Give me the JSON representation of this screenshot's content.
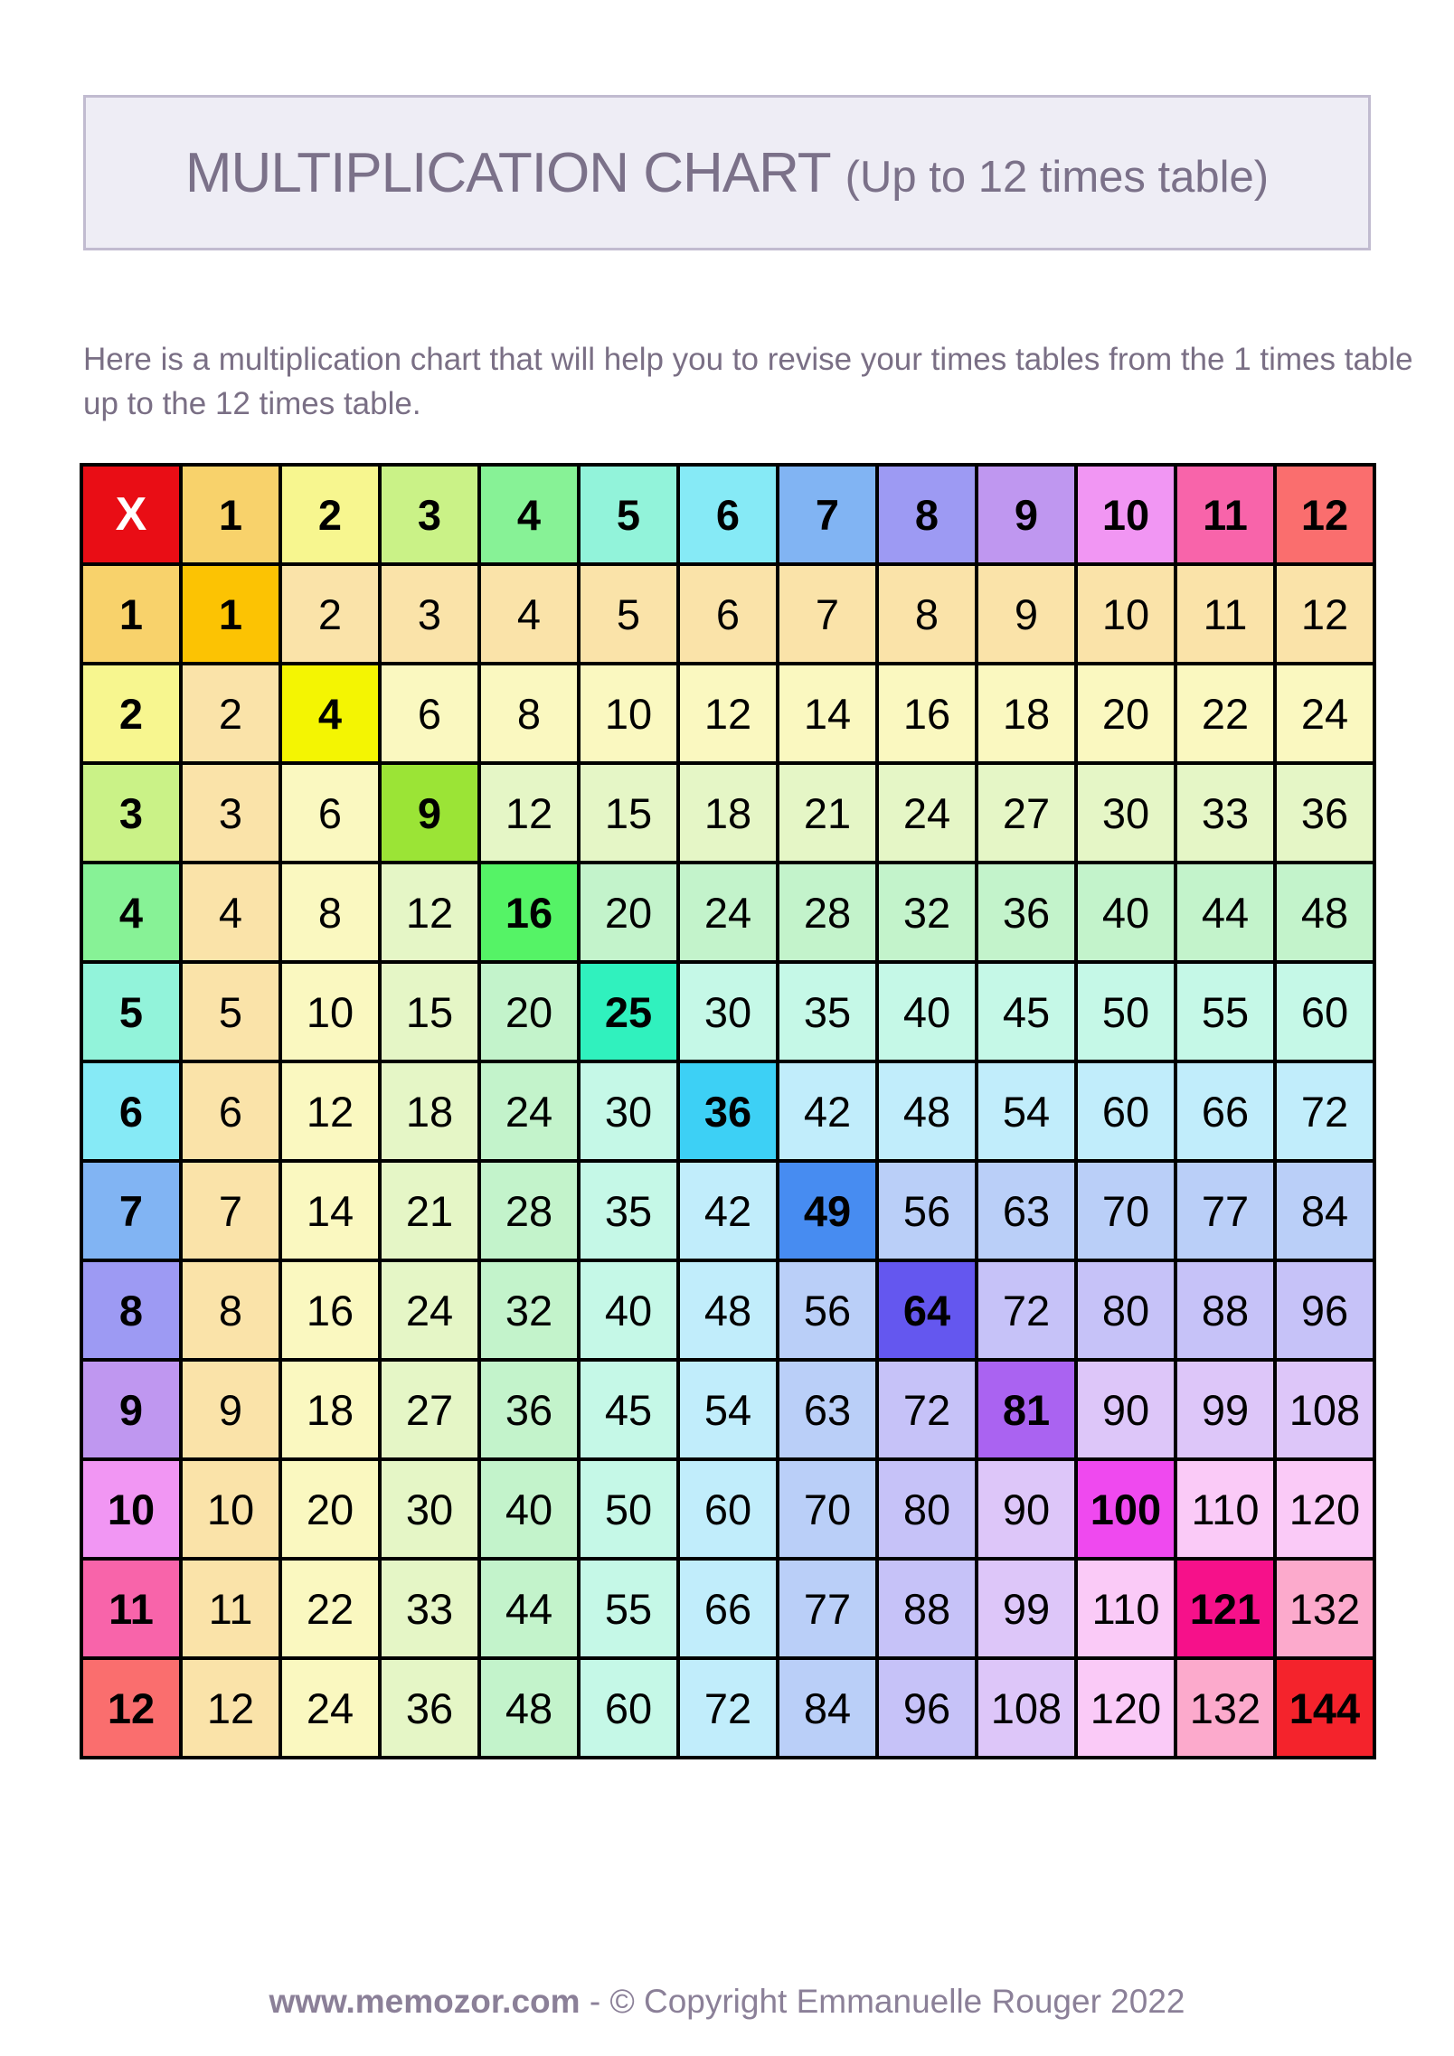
{
  "title": {
    "main": "MULTIPLICATION CHART",
    "suffix": "(Up to 12 times table)"
  },
  "description": "Here is a multiplication chart that will help you to revise your times tables from the 1 times table up to the 12 times table.",
  "footer": {
    "site": "www.memozor.com",
    "separator": "-",
    "copyright": "© Copyright Emmanuelle Rouger 2022"
  },
  "table": {
    "corner_label": "X",
    "headers": [
      1,
      2,
      3,
      4,
      5,
      6,
      7,
      8,
      9,
      10,
      11,
      12
    ],
    "rows": [
      [
        1,
        2,
        3,
        4,
        5,
        6,
        7,
        8,
        9,
        10,
        11,
        12
      ],
      [
        2,
        4,
        6,
        8,
        10,
        12,
        14,
        16,
        18,
        20,
        22,
        24
      ],
      [
        3,
        6,
        9,
        12,
        15,
        18,
        21,
        24,
        27,
        30,
        33,
        36
      ],
      [
        4,
        8,
        12,
        16,
        20,
        24,
        28,
        32,
        36,
        40,
        44,
        48
      ],
      [
        5,
        10,
        15,
        20,
        25,
        30,
        35,
        40,
        45,
        50,
        55,
        60
      ],
      [
        6,
        12,
        18,
        24,
        30,
        36,
        42,
        48,
        54,
        60,
        66,
        72
      ],
      [
        7,
        14,
        21,
        28,
        35,
        42,
        49,
        56,
        63,
        70,
        77,
        84
      ],
      [
        8,
        16,
        24,
        32,
        40,
        48,
        56,
        64,
        72,
        80,
        88,
        96
      ],
      [
        9,
        18,
        27,
        36,
        45,
        54,
        63,
        72,
        81,
        90,
        99,
        108
      ],
      [
        10,
        20,
        30,
        40,
        50,
        60,
        70,
        80,
        90,
        100,
        110,
        120
      ],
      [
        11,
        22,
        33,
        44,
        55,
        66,
        77,
        88,
        99,
        110,
        121,
        132
      ],
      [
        12,
        24,
        36,
        48,
        60,
        72,
        84,
        96,
        108,
        120,
        132,
        144
      ]
    ],
    "colors": {
      "grid_line": "#000000",
      "corner_bg": "#e90d15",
      "corner_text": "#ffffff",
      "number_text": "#000000",
      "header": [
        "#f8d26b",
        "#f7f68f",
        "#caf287",
        "#87f296",
        "#92f3da",
        "#86eaf6",
        "#81b4f3",
        "#9d9af3",
        "#bf97f0",
        "#f196f3",
        "#f864aa",
        "#fa6e6e"
      ],
      "diagonal": [
        "#fcc303",
        "#f4f502",
        "#9be436",
        "#55f366",
        "#30f1be",
        "#3dd0f5",
        "#478cf1",
        "#6457ef",
        "#aa63f1",
        "#ef49ef",
        "#f6118a",
        "#f4232c"
      ],
      "tint": [
        "#fae3a9",
        "#faf8c0",
        "#e5f6c6",
        "#c3f3cb",
        "#c5f8e7",
        "#c1edfb",
        "#bacff8",
        "#c6c2f8",
        "#ddc6f9",
        "#facaf7",
        "#fcaacc",
        "#fcaeae"
      ]
    }
  },
  "page": {
    "background": "#ffffff",
    "title_box_bg": "#eeedf5",
    "title_box_border": "#c1bbd0",
    "title_text_color": "#7b7189",
    "description_text_color": "#7a6f85",
    "footer_text_color": "#8b8098"
  }
}
